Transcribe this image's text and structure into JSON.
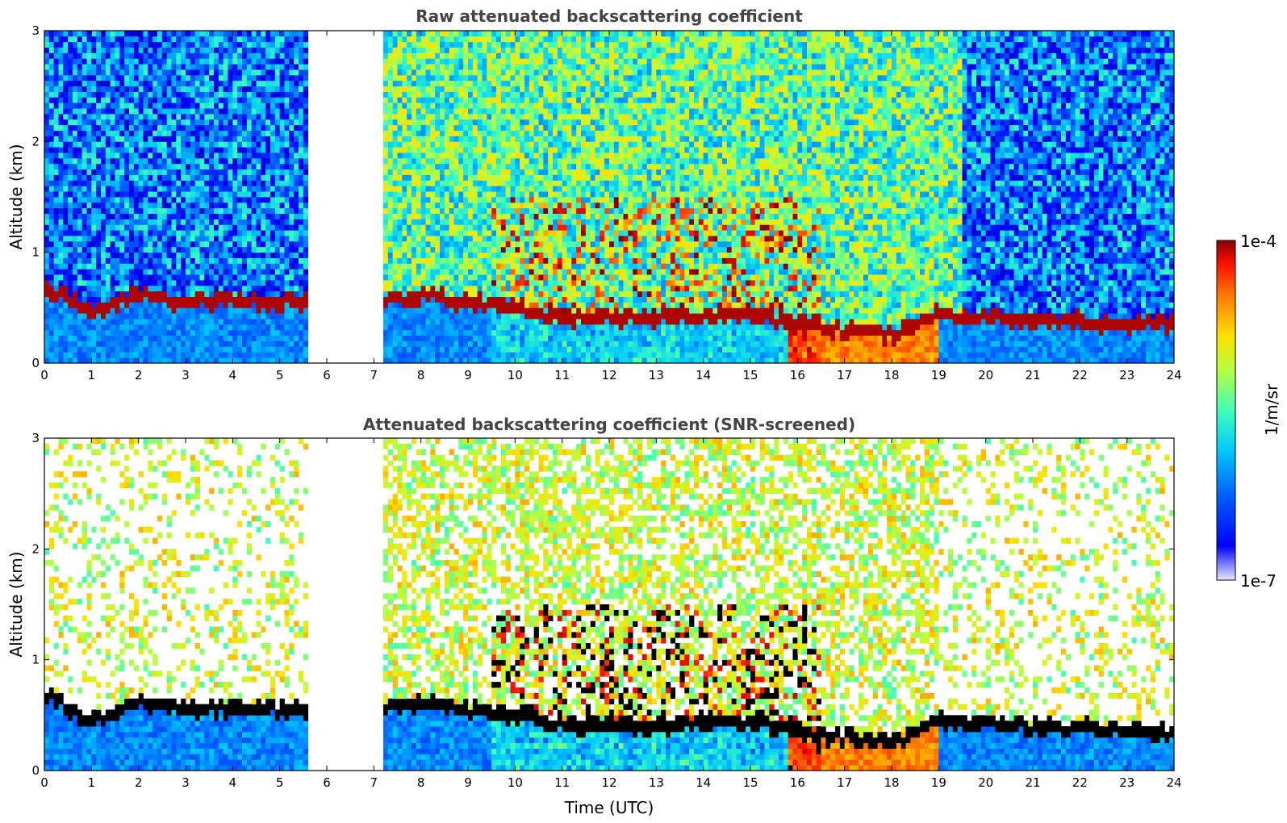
{
  "chart_data": [
    {
      "type": "heatmap",
      "title": "Raw attenuated backscattering coefficient",
      "xlabel": "",
      "ylabel": "Altitude (km)",
      "xlim": [
        0,
        24
      ],
      "ylim": [
        0,
        3
      ],
      "xticks": [
        "0",
        "1",
        "2",
        "3",
        "4",
        "5",
        "6",
        "7",
        "8",
        "9",
        "10",
        "11",
        "12",
        "13",
        "14",
        "15",
        "16",
        "17",
        "18",
        "19",
        "20",
        "21",
        "22",
        "23",
        "24"
      ],
      "yticks": [
        "0",
        "1",
        "2",
        "3"
      ],
      "data_gap_utc": [
        5.6,
        7.2
      ],
      "screened": false
    },
    {
      "type": "heatmap",
      "title": "Attenuated backscattering coefficient (SNR-screened)",
      "xlabel": "Time (UTC)",
      "ylabel": "Altitude (km)",
      "xlim": [
        0,
        24
      ],
      "ylim": [
        0,
        3
      ],
      "xticks": [
        "0",
        "1",
        "2",
        "3",
        "4",
        "5",
        "6",
        "7",
        "8",
        "9",
        "10",
        "11",
        "12",
        "13",
        "14",
        "15",
        "16",
        "17",
        "18",
        "19",
        "20",
        "21",
        "22",
        "23",
        "24"
      ],
      "yticks": [
        "0",
        "1",
        "2",
        "3"
      ],
      "data_gap_utc": [
        5.6,
        7.2
      ],
      "screened": true
    }
  ],
  "colorbar": {
    "label": "1/m/sr",
    "max_label": "1e-4",
    "min_label": "1e-7",
    "colormap": "jet",
    "colors": [
      "#e8e8ff",
      "#00009a",
      "#0000ff",
      "#0060ff",
      "#00c8ff",
      "#40ffb8",
      "#b8ff40",
      "#ffe000",
      "#ff7800",
      "#ff1000",
      "#8a0000"
    ]
  },
  "layer_profile": {
    "description_key": "boundary-layer top altitude (km) vs time (UTC), hourly",
    "hours": [
      0,
      1,
      2,
      3,
      4,
      5,
      5.6,
      7.2,
      8,
      9,
      10,
      11,
      12,
      13,
      14,
      15,
      16,
      17,
      18,
      19,
      20,
      21,
      22,
      23,
      24
    ],
    "top_km": [
      0.7,
      0.45,
      0.62,
      0.55,
      0.56,
      0.55,
      0.55,
      0.55,
      0.62,
      0.55,
      0.5,
      0.4,
      0.42,
      0.4,
      0.42,
      0.45,
      0.35,
      0.3,
      0.25,
      0.45,
      0.42,
      0.4,
      0.38,
      0.36,
      0.35
    ]
  }
}
